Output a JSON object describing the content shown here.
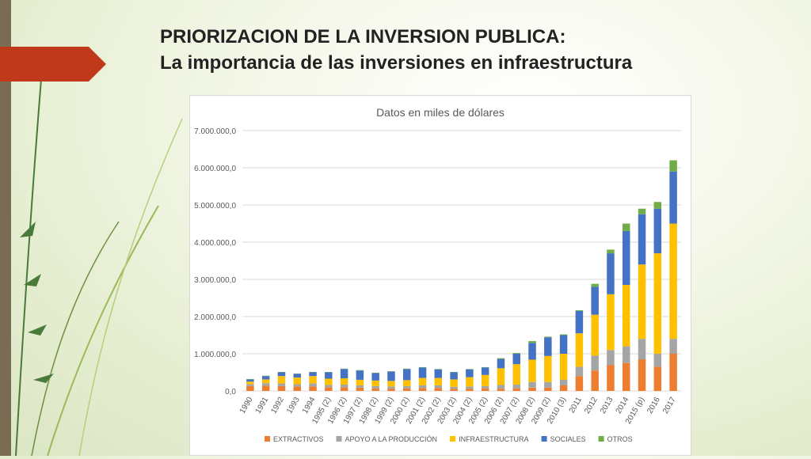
{
  "slide": {
    "title_line1": "PRIORIZACION DE LA INVERSION PUBLICA:",
    "title_line2": "La importancia de las inversiones en infraestructura"
  },
  "colors": {
    "extractivos": "#ed7d31",
    "apoyo": "#a5a5a5",
    "infraestructura": "#ffc000",
    "sociales": "#4472c4",
    "otros": "#70ad47",
    "red_tab": "#c0391b",
    "left_bar": "#7a6c52"
  },
  "chart_data": {
    "type": "bar",
    "stacked": true,
    "title": "Datos en miles de dólares",
    "xlabel": "",
    "ylabel": "",
    "ylim": [
      0,
      7000000
    ],
    "yticks": [
      "0,0",
      "1.000.000,0",
      "2.000.000,0",
      "3.000.000,0",
      "4.000.000,0",
      "5.000.000,0",
      "6.000.000,0",
      "7.000.000,0"
    ],
    "grid": true,
    "legend_position": "bottom",
    "categories": [
      "1990",
      "1991",
      "1992",
      "1993",
      "1994",
      "1995 (2)",
      "1996 (2)",
      "1997 (2)",
      "1998 (2)",
      "1999 (2)",
      "2000 (2)",
      "2001 (2)",
      "2002 (2)",
      "2003 (2)",
      "2004 (2)",
      "2005 (2)",
      "2006 (2)",
      "2007 (2)",
      "2008 (2)",
      "2009 (2)",
      "2010 (3)",
      "2011",
      "2012",
      "2013",
      "2014",
      "2015 (p)",
      "2016",
      "2017"
    ],
    "series": [
      {
        "name": "EXTRACTIVOS",
        "values": [
          130000,
          140000,
          130000,
          120000,
          120000,
          100000,
          100000,
          90000,
          70000,
          60000,
          70000,
          80000,
          80000,
          60000,
          60000,
          70000,
          60000,
          70000,
          90000,
          90000,
          150000,
          400000,
          550000,
          700000,
          750000,
          850000,
          650000,
          1000000
        ]
      },
      {
        "name": "APOYO A LA PRODUCCIÓN",
        "values": [
          50000,
          70000,
          70000,
          60000,
          80000,
          60000,
          70000,
          60000,
          60000,
          60000,
          60000,
          70000,
          70000,
          50000,
          60000,
          60000,
          100000,
          100000,
          150000,
          150000,
          150000,
          250000,
          400000,
          400000,
          450000,
          550000,
          350000,
          400000
        ]
      },
      {
        "name": "INFRAESTRUCTURA",
        "values": [
          70000,
          100000,
          200000,
          180000,
          200000,
          170000,
          170000,
          150000,
          150000,
          150000,
          160000,
          200000,
          200000,
          200000,
          250000,
          300000,
          450000,
          550000,
          600000,
          700000,
          700000,
          900000,
          1100000,
          1500000,
          1650000,
          2000000,
          2700000,
          3100000
        ]
      },
      {
        "name": "SOCIALES",
        "values": [
          60000,
          90000,
          100000,
          100000,
          100000,
          170000,
          250000,
          250000,
          200000,
          250000,
          300000,
          280000,
          230000,
          190000,
          210000,
          200000,
          250000,
          280000,
          450000,
          500000,
          500000,
          600000,
          750000,
          1100000,
          1450000,
          1350000,
          1200000,
          1400000
        ]
      },
      {
        "name": "OTROS",
        "values": [
          10000,
          10000,
          10000,
          10000,
          10000,
          10000,
          10000,
          10000,
          10000,
          10000,
          10000,
          10000,
          10000,
          10000,
          10000,
          10000,
          20000,
          20000,
          50000,
          20000,
          20000,
          20000,
          80000,
          100000,
          200000,
          150000,
          180000,
          300000
        ]
      }
    ]
  }
}
